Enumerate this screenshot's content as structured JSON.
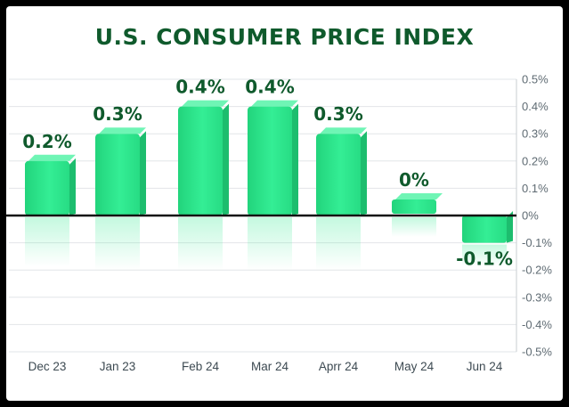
{
  "chart_data": {
    "type": "bar",
    "title": "U.S. CONSUMER PRICE INDEX",
    "xlabel": "",
    "ylabel": "",
    "categories": [
      "Dec 23",
      "Jan 23",
      "Feb 24",
      "Mar 24",
      "Aprr 24",
      "May 24",
      "Jun 24"
    ],
    "values": [
      0.2,
      0.3,
      0.4,
      0.4,
      0.3,
      0,
      -0.1
    ],
    "data_labels": [
      "0.2%",
      "0.3%",
      "0.4%",
      "0.4%",
      "0.3%",
      "0%",
      "-0.1%"
    ],
    "ylim": [
      -0.5,
      0.5
    ],
    "yticks": [
      0.5,
      0.4,
      0.3,
      0.2,
      0.1,
      0,
      -0.1,
      -0.2,
      -0.3,
      -0.4,
      -0.5
    ],
    "ytick_labels": [
      "0.5%",
      "0.4%",
      "0.3%",
      "0.2%",
      "0.1%",
      "0%",
      "-0.1%",
      "-0.2%",
      "-0.3%",
      "-0.4%",
      "-0.5%"
    ],
    "y_axis_side": "right",
    "grid": true,
    "bar_color": "#2ee88e",
    "title_color": "#0f5a2c"
  }
}
